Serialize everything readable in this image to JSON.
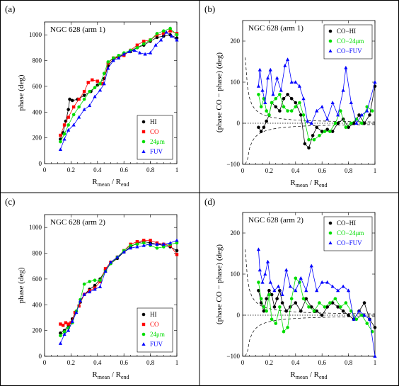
{
  "colors": {
    "HI": "#000000",
    "CO": "#ff0000",
    "24um": "#00dd00",
    "FUV": "#0000ff",
    "CO-HI": "#000000",
    "CO-24um": "#00dd00",
    "CO-FUV": "#0000ff"
  },
  "chart_data": [
    {
      "type": "scatter",
      "panel": "(a)",
      "title": "NGC 628 (arm 1)",
      "xlabel": "R_mean / R_end",
      "ylabel": "phase (deg)",
      "xlim": [
        0,
        1
      ],
      "ylim": [
        0,
        1100
      ],
      "xticks": [
        "0",
        "0.2",
        "0.4",
        "0.6",
        "0.8",
        "1"
      ],
      "yticks": [
        "0",
        "200",
        "400",
        "600",
        "800",
        "1000"
      ],
      "legend_position": "bottom-right",
      "series": [
        {
          "name": "HI",
          "marker": "circle",
          "x": [
            0.12,
            0.14,
            0.16,
            0.18,
            0.19,
            0.21,
            0.25,
            0.3,
            0.35,
            0.4,
            0.45,
            0.48,
            0.52,
            0.56,
            0.6,
            0.65,
            0.7,
            0.75,
            0.8,
            0.85,
            0.9,
            0.95,
            1.0
          ],
          "y": [
            190,
            240,
            330,
            420,
            500,
            490,
            500,
            530,
            560,
            610,
            660,
            760,
            810,
            830,
            850,
            870,
            900,
            920,
            950,
            980,
            990,
            1000,
            975
          ]
        },
        {
          "name": "CO",
          "marker": "square",
          "x": [
            0.12,
            0.15,
            0.18,
            0.22,
            0.26,
            0.3,
            0.33,
            0.36,
            0.4,
            0.44,
            0.48,
            0.52,
            0.56,
            0.6,
            0.65,
            0.7,
            0.75,
            0.8,
            0.85,
            0.9,
            0.95,
            1.0
          ],
          "y": [
            220,
            300,
            360,
            440,
            500,
            560,
            630,
            650,
            640,
            620,
            780,
            820,
            830,
            840,
            880,
            920,
            950,
            960,
            1000,
            1010,
            1030,
            1010
          ]
        },
        {
          "name": "24μm",
          "marker": "circle",
          "x": [
            0.12,
            0.15,
            0.18,
            0.22,
            0.26,
            0.3,
            0.34,
            0.38,
            0.42,
            0.45,
            0.48,
            0.52,
            0.56,
            0.6,
            0.65,
            0.7,
            0.75,
            0.8,
            0.85,
            0.9,
            0.95,
            1.0
          ],
          "y": [
            170,
            230,
            300,
            380,
            440,
            500,
            560,
            590,
            620,
            700,
            790,
            820,
            840,
            860,
            880,
            900,
            930,
            960,
            1010,
            1030,
            1050,
            1000
          ]
        },
        {
          "name": "FUV",
          "marker": "triangle",
          "x": [
            0.12,
            0.15,
            0.18,
            0.22,
            0.26,
            0.3,
            0.34,
            0.38,
            0.42,
            0.45,
            0.48,
            0.52,
            0.56,
            0.6,
            0.64,
            0.68,
            0.72,
            0.76,
            0.8,
            0.84,
            0.88,
            0.92,
            0.96,
            1.0
          ],
          "y": [
            110,
            190,
            260,
            300,
            360,
            420,
            450,
            520,
            570,
            620,
            740,
            800,
            820,
            850,
            870,
            880,
            860,
            850,
            860,
            920,
            960,
            1020,
            990,
            960
          ]
        }
      ]
    },
    {
      "type": "scatter",
      "panel": "(b)",
      "title": "NGC 628 (arm 1)",
      "xlabel": "R_mean / R_end",
      "ylabel": "(phase CO − phase) (deg)",
      "xlim": [
        0,
        1
      ],
      "ylim": [
        -100,
        250
      ],
      "xticks": [
        "0",
        "0.2",
        "0.4",
        "0.6",
        "0.8",
        "1"
      ],
      "yticks": [
        "−100",
        "0",
        "100",
        "200"
      ],
      "legend_position": "top-right",
      "series": [
        {
          "name": "CO−HI",
          "marker": "circle",
          "x": [
            0.12,
            0.14,
            0.16,
            0.18,
            0.2,
            0.22,
            0.25,
            0.28,
            0.31,
            0.34,
            0.37,
            0.4,
            0.44,
            0.47,
            0.5,
            0.53,
            0.56,
            0.6,
            0.64,
            0.68,
            0.72,
            0.76,
            0.8,
            0.84,
            0.88,
            0.92,
            0.96,
            1.0
          ],
          "y": [
            -10,
            -20,
            -10,
            5,
            20,
            50,
            40,
            30,
            60,
            70,
            60,
            50,
            20,
            -50,
            -60,
            -30,
            -10,
            -20,
            -15,
            -20,
            0,
            10,
            -10,
            0,
            20,
            0,
            20,
            90
          ]
        },
        {
          "name": "CO−24μm",
          "marker": "circle",
          "x": [
            0.12,
            0.14,
            0.16,
            0.18,
            0.2,
            0.22,
            0.25,
            0.28,
            0.31,
            0.34,
            0.37,
            0.4,
            0.43,
            0.46,
            0.5,
            0.54,
            0.58,
            0.62,
            0.66,
            0.7,
            0.74,
            0.78,
            0.82,
            0.86,
            0.9,
            0.94,
            0.98
          ],
          "y": [
            70,
            40,
            60,
            30,
            20,
            50,
            60,
            70,
            40,
            30,
            30,
            40,
            50,
            20,
            -40,
            -40,
            -30,
            -20,
            -20,
            0,
            30,
            -10,
            0,
            10,
            0,
            40,
            30
          ]
        },
        {
          "name": "CO−FUV",
          "marker": "triangle",
          "x": [
            0.12,
            0.13,
            0.15,
            0.17,
            0.19,
            0.21,
            0.23,
            0.26,
            0.29,
            0.32,
            0.34,
            0.37,
            0.4,
            0.43,
            0.46,
            0.49,
            0.52,
            0.56,
            0.6,
            0.64,
            0.68,
            0.72,
            0.76,
            0.78,
            0.82,
            0.86,
            0.9,
            0.94,
            1.0
          ],
          "y": [
            90,
            130,
            80,
            50,
            110,
            130,
            70,
            110,
            80,
            140,
            155,
            100,
            100,
            90,
            60,
            5,
            0,
            30,
            40,
            10,
            50,
            20,
            80,
            135,
            50,
            0,
            20,
            30,
            100
          ]
        }
      ]
    },
    {
      "type": "scatter",
      "panel": "(c)",
      "title": "NGC 628 (arm 2)",
      "xlabel": "R_mean / R_end",
      "ylabel": "phase (deg)",
      "xlim": [
        0,
        1
      ],
      "ylim": [
        0,
        1100
      ],
      "xticks": [
        "0",
        "0.2",
        "0.4",
        "0.6",
        "0.8",
        "1"
      ],
      "yticks": [
        "0",
        "200",
        "400",
        "600",
        "800",
        "1000"
      ],
      "legend_position": "bottom-right",
      "series": [
        {
          "name": "HI",
          "marker": "circle",
          "x": [
            0.12,
            0.15,
            0.18,
            0.21,
            0.24,
            0.27,
            0.3,
            0.34,
            0.38,
            0.42,
            0.46,
            0.5,
            0.55,
            0.6,
            0.65,
            0.7,
            0.75,
            0.8,
            0.85,
            0.9,
            0.95,
            1.0
          ],
          "y": [
            180,
            200,
            240,
            290,
            350,
            420,
            480,
            520,
            550,
            600,
            670,
            720,
            760,
            810,
            850,
            880,
            890,
            880,
            870,
            860,
            850,
            820
          ]
        },
        {
          "name": "CO",
          "marker": "square",
          "x": [
            0.12,
            0.14,
            0.16,
            0.18,
            0.2,
            0.23,
            0.26,
            0.3,
            0.34,
            0.38,
            0.42,
            0.46,
            0.5,
            0.55,
            0.6,
            0.65,
            0.7,
            0.75,
            0.8,
            0.85,
            0.9,
            0.95,
            1.0
          ],
          "y": [
            250,
            240,
            260,
            250,
            260,
            340,
            390,
            480,
            510,
            530,
            580,
            680,
            730,
            770,
            820,
            870,
            890,
            900,
            900,
            880,
            870,
            860,
            790
          ]
        },
        {
          "name": "24μm",
          "marker": "circle",
          "x": [
            0.12,
            0.15,
            0.18,
            0.21,
            0.24,
            0.27,
            0.3,
            0.34,
            0.38,
            0.42,
            0.46,
            0.5,
            0.55,
            0.6,
            0.65,
            0.7,
            0.75,
            0.8,
            0.85,
            0.9,
            0.95,
            1.0
          ],
          "y": [
            160,
            190,
            220,
            260,
            350,
            440,
            560,
            580,
            590,
            590,
            660,
            720,
            770,
            820,
            860,
            870,
            880,
            860,
            840,
            850,
            870,
            880
          ]
        },
        {
          "name": "FUV",
          "marker": "triangle",
          "x": [
            0.12,
            0.15,
            0.18,
            0.21,
            0.24,
            0.27,
            0.3,
            0.34,
            0.38,
            0.42,
            0.46,
            0.5,
            0.55,
            0.6,
            0.65,
            0.7,
            0.75,
            0.8,
            0.85,
            0.9,
            0.95,
            1.0
          ],
          "y": [
            100,
            170,
            200,
            270,
            340,
            430,
            480,
            500,
            520,
            540,
            660,
            730,
            770,
            810,
            840,
            850,
            860,
            870,
            870,
            870,
            880,
            900
          ]
        }
      ]
    },
    {
      "type": "scatter",
      "panel": "(d)",
      "title": "NGC 628 (arm 2)",
      "xlabel": "R_mean / R_end",
      "ylabel": "(phase CO − phase) (deg)",
      "xlim": [
        0,
        1
      ],
      "ylim": [
        -100,
        250
      ],
      "xticks": [
        "0",
        "0.2",
        "0.4",
        "0.6",
        "0.8",
        "1"
      ],
      "yticks": [
        "−100",
        "0",
        "100",
        "200"
      ],
      "legend_position": "top-right",
      "series": [
        {
          "name": "CO−HI",
          "marker": "circle",
          "x": [
            0.12,
            0.14,
            0.16,
            0.18,
            0.2,
            0.22,
            0.24,
            0.26,
            0.28,
            0.3,
            0.33,
            0.36,
            0.4,
            0.44,
            0.48,
            0.52,
            0.56,
            0.6,
            0.64,
            0.68,
            0.72,
            0.76,
            0.8,
            0.84,
            0.88,
            0.92,
            0.96,
            1.0
          ],
          "y": [
            60,
            30,
            10,
            40,
            60,
            50,
            20,
            40,
            60,
            30,
            10,
            20,
            30,
            10,
            40,
            20,
            10,
            0,
            20,
            30,
            20,
            10,
            0,
            -10,
            10,
            30,
            -10,
            -30
          ]
        },
        {
          "name": "CO−24μm",
          "marker": "circle",
          "x": [
            0.12,
            0.14,
            0.16,
            0.18,
            0.2,
            0.22,
            0.25,
            0.28,
            0.31,
            0.34,
            0.37,
            0.4,
            0.43,
            0.46,
            0.5,
            0.54,
            0.58,
            0.62,
            0.66,
            0.7,
            0.74,
            0.78,
            0.82,
            0.86,
            0.9,
            0.94,
            0.98
          ],
          "y": [
            80,
            40,
            20,
            10,
            50,
            -10,
            -20,
            20,
            -40,
            -30,
            40,
            90,
            80,
            40,
            20,
            10,
            30,
            20,
            30,
            40,
            20,
            30,
            10,
            -10,
            0,
            -20,
            -40
          ]
        },
        {
          "name": "CO−FUV",
          "marker": "triangle",
          "x": [
            0.12,
            0.13,
            0.15,
            0.17,
            0.19,
            0.21,
            0.24,
            0.27,
            0.3,
            0.33,
            0.36,
            0.4,
            0.44,
            0.48,
            0.52,
            0.56,
            0.6,
            0.64,
            0.68,
            0.72,
            0.76,
            0.8,
            0.84,
            0.88,
            0.92,
            0.96,
            1.0
          ],
          "y": [
            160,
            110,
            80,
            100,
            130,
            80,
            60,
            70,
            50,
            110,
            70,
            60,
            90,
            60,
            120,
            60,
            80,
            80,
            70,
            60,
            70,
            60,
            -10,
            10,
            0,
            -10,
            -100
          ]
        }
      ]
    }
  ],
  "panels": [
    {
      "letter": "(a)",
      "legend": [
        "HI",
        "CO",
        "24μm",
        "FUV"
      ]
    },
    {
      "letter": "(b)",
      "legend": [
        "CO−HI",
        "CO−24μm",
        "CO−FUV"
      ]
    },
    {
      "letter": "(c)",
      "legend": [
        "HI",
        "CO",
        "24μm",
        "FUV"
      ]
    },
    {
      "letter": "(d)",
      "legend": [
        "CO−HI",
        "CO−24μm",
        "CO−FUV"
      ]
    }
  ]
}
